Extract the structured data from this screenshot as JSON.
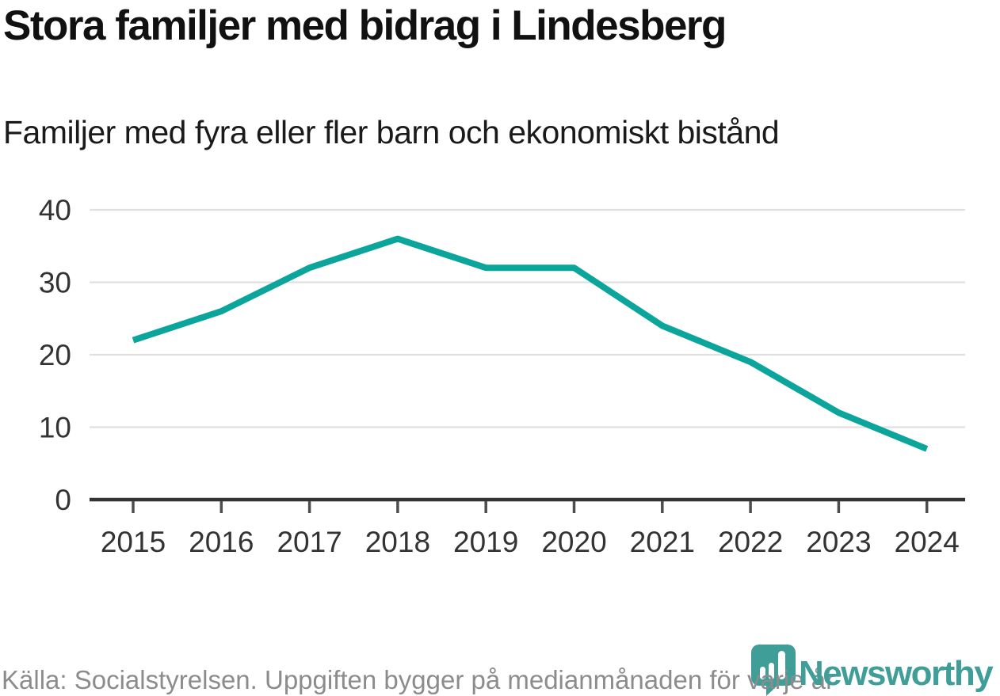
{
  "header": {
    "title": "Stora familjer med bidrag i Lindesberg",
    "subtitle": "Familjer med fyra eller fler barn och ekonomiskt bistånd"
  },
  "chart_data": {
    "type": "line",
    "title": "Stora familjer med bidrag i Lindesberg",
    "subtitle": "Familjer med fyra eller fler barn och ekonomiskt bistånd",
    "x": [
      "2015",
      "2016",
      "2017",
      "2018",
      "2019",
      "2020",
      "2021",
      "2022",
      "2023",
      "2024"
    ],
    "series": [
      {
        "name": "Familjer med fyra eller fler barn och ekonomiskt bistånd",
        "values": [
          22,
          26,
          32,
          36,
          32,
          32,
          24,
          19,
          12,
          7
        ]
      }
    ],
    "xlabel": "",
    "ylabel": "",
    "ylim": [
      0,
      40
    ],
    "yticks": [
      0,
      10,
      20,
      30,
      40
    ],
    "grid": "horizontal-only",
    "legend": "none"
  },
  "footer": {
    "source_text": "Källa: Socialstyrelsen. Uppgiften bygger på medianmånaden för varje år",
    "brand_name": "Newsworthy"
  },
  "colors": {
    "line": "#0ba59b",
    "brand_teal": "#3f9e97",
    "grid": "#e0e0e0",
    "axis": "#333333",
    "tick": "#4d4d4d",
    "tick_label": "#333333",
    "background": "#ffffff"
  }
}
